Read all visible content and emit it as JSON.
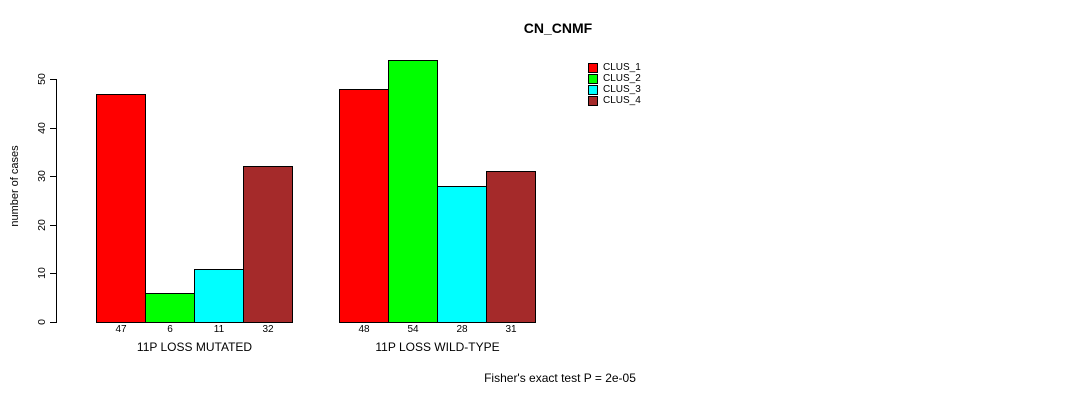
{
  "chart_data": {
    "type": "bar",
    "title": "CN_CNMF",
    "ylabel": "number of cases",
    "xlabel": "",
    "categories": [
      "11P LOSS MUTATED",
      "11P LOSS WILD-TYPE"
    ],
    "series": [
      {
        "name": "CLUS_1",
        "color": "#ff0000",
        "values": [
          47,
          48
        ]
      },
      {
        "name": "CLUS_2",
        "color": "#00ff00",
        "values": [
          6,
          54
        ]
      },
      {
        "name": "CLUS_3",
        "color": "#00ffff",
        "values": [
          11,
          28
        ]
      },
      {
        "name": "CLUS_4",
        "color": "#a52a2a",
        "values": [
          32,
          31
        ]
      }
    ],
    "bar_value_labels": [
      [
        47,
        6,
        11,
        32
      ],
      [
        48,
        54,
        28,
        31
      ]
    ],
    "yticks": [
      0,
      10,
      20,
      30,
      40,
      50
    ],
    "ylim": [
      0,
      54
    ],
    "grid": false,
    "legend_position": "top-right",
    "annotation": "Fisher's exact test P = 2e-05"
  }
}
